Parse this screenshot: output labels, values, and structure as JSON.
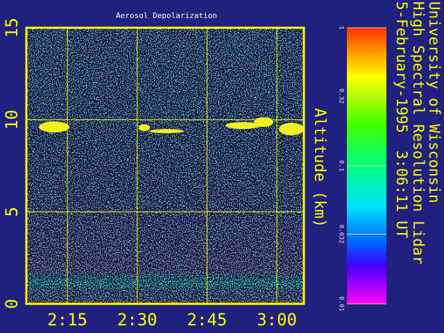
{
  "chart_data": {
    "type": "heatmap",
    "title": "Aerosol Depolarization",
    "y_label": "Altitude (km)",
    "ylim": [
      0,
      15
    ],
    "yticks": [
      0,
      5,
      10,
      15
    ],
    "xlim": [
      126.2,
      185.8
    ],
    "xticks": [
      {
        "value": 135,
        "label": "2:15"
      },
      {
        "value": 150,
        "label": "2:30"
      },
      {
        "value": 165,
        "label": "2:45"
      },
      {
        "value": 180,
        "label": "3:00"
      }
    ],
    "colorbar": {
      "scale": "log",
      "lim": [
        0.01,
        1
      ],
      "ticks": [
        1,
        0.32,
        0.1,
        0.032,
        0.01
      ]
    },
    "grid": true,
    "color": "#ffff00"
  },
  "header": {
    "lines": [
      "University of Wisconsin",
      "High Spectral Resolution Lidar",
      "5-February-1995  3:06:11 UT"
    ]
  }
}
